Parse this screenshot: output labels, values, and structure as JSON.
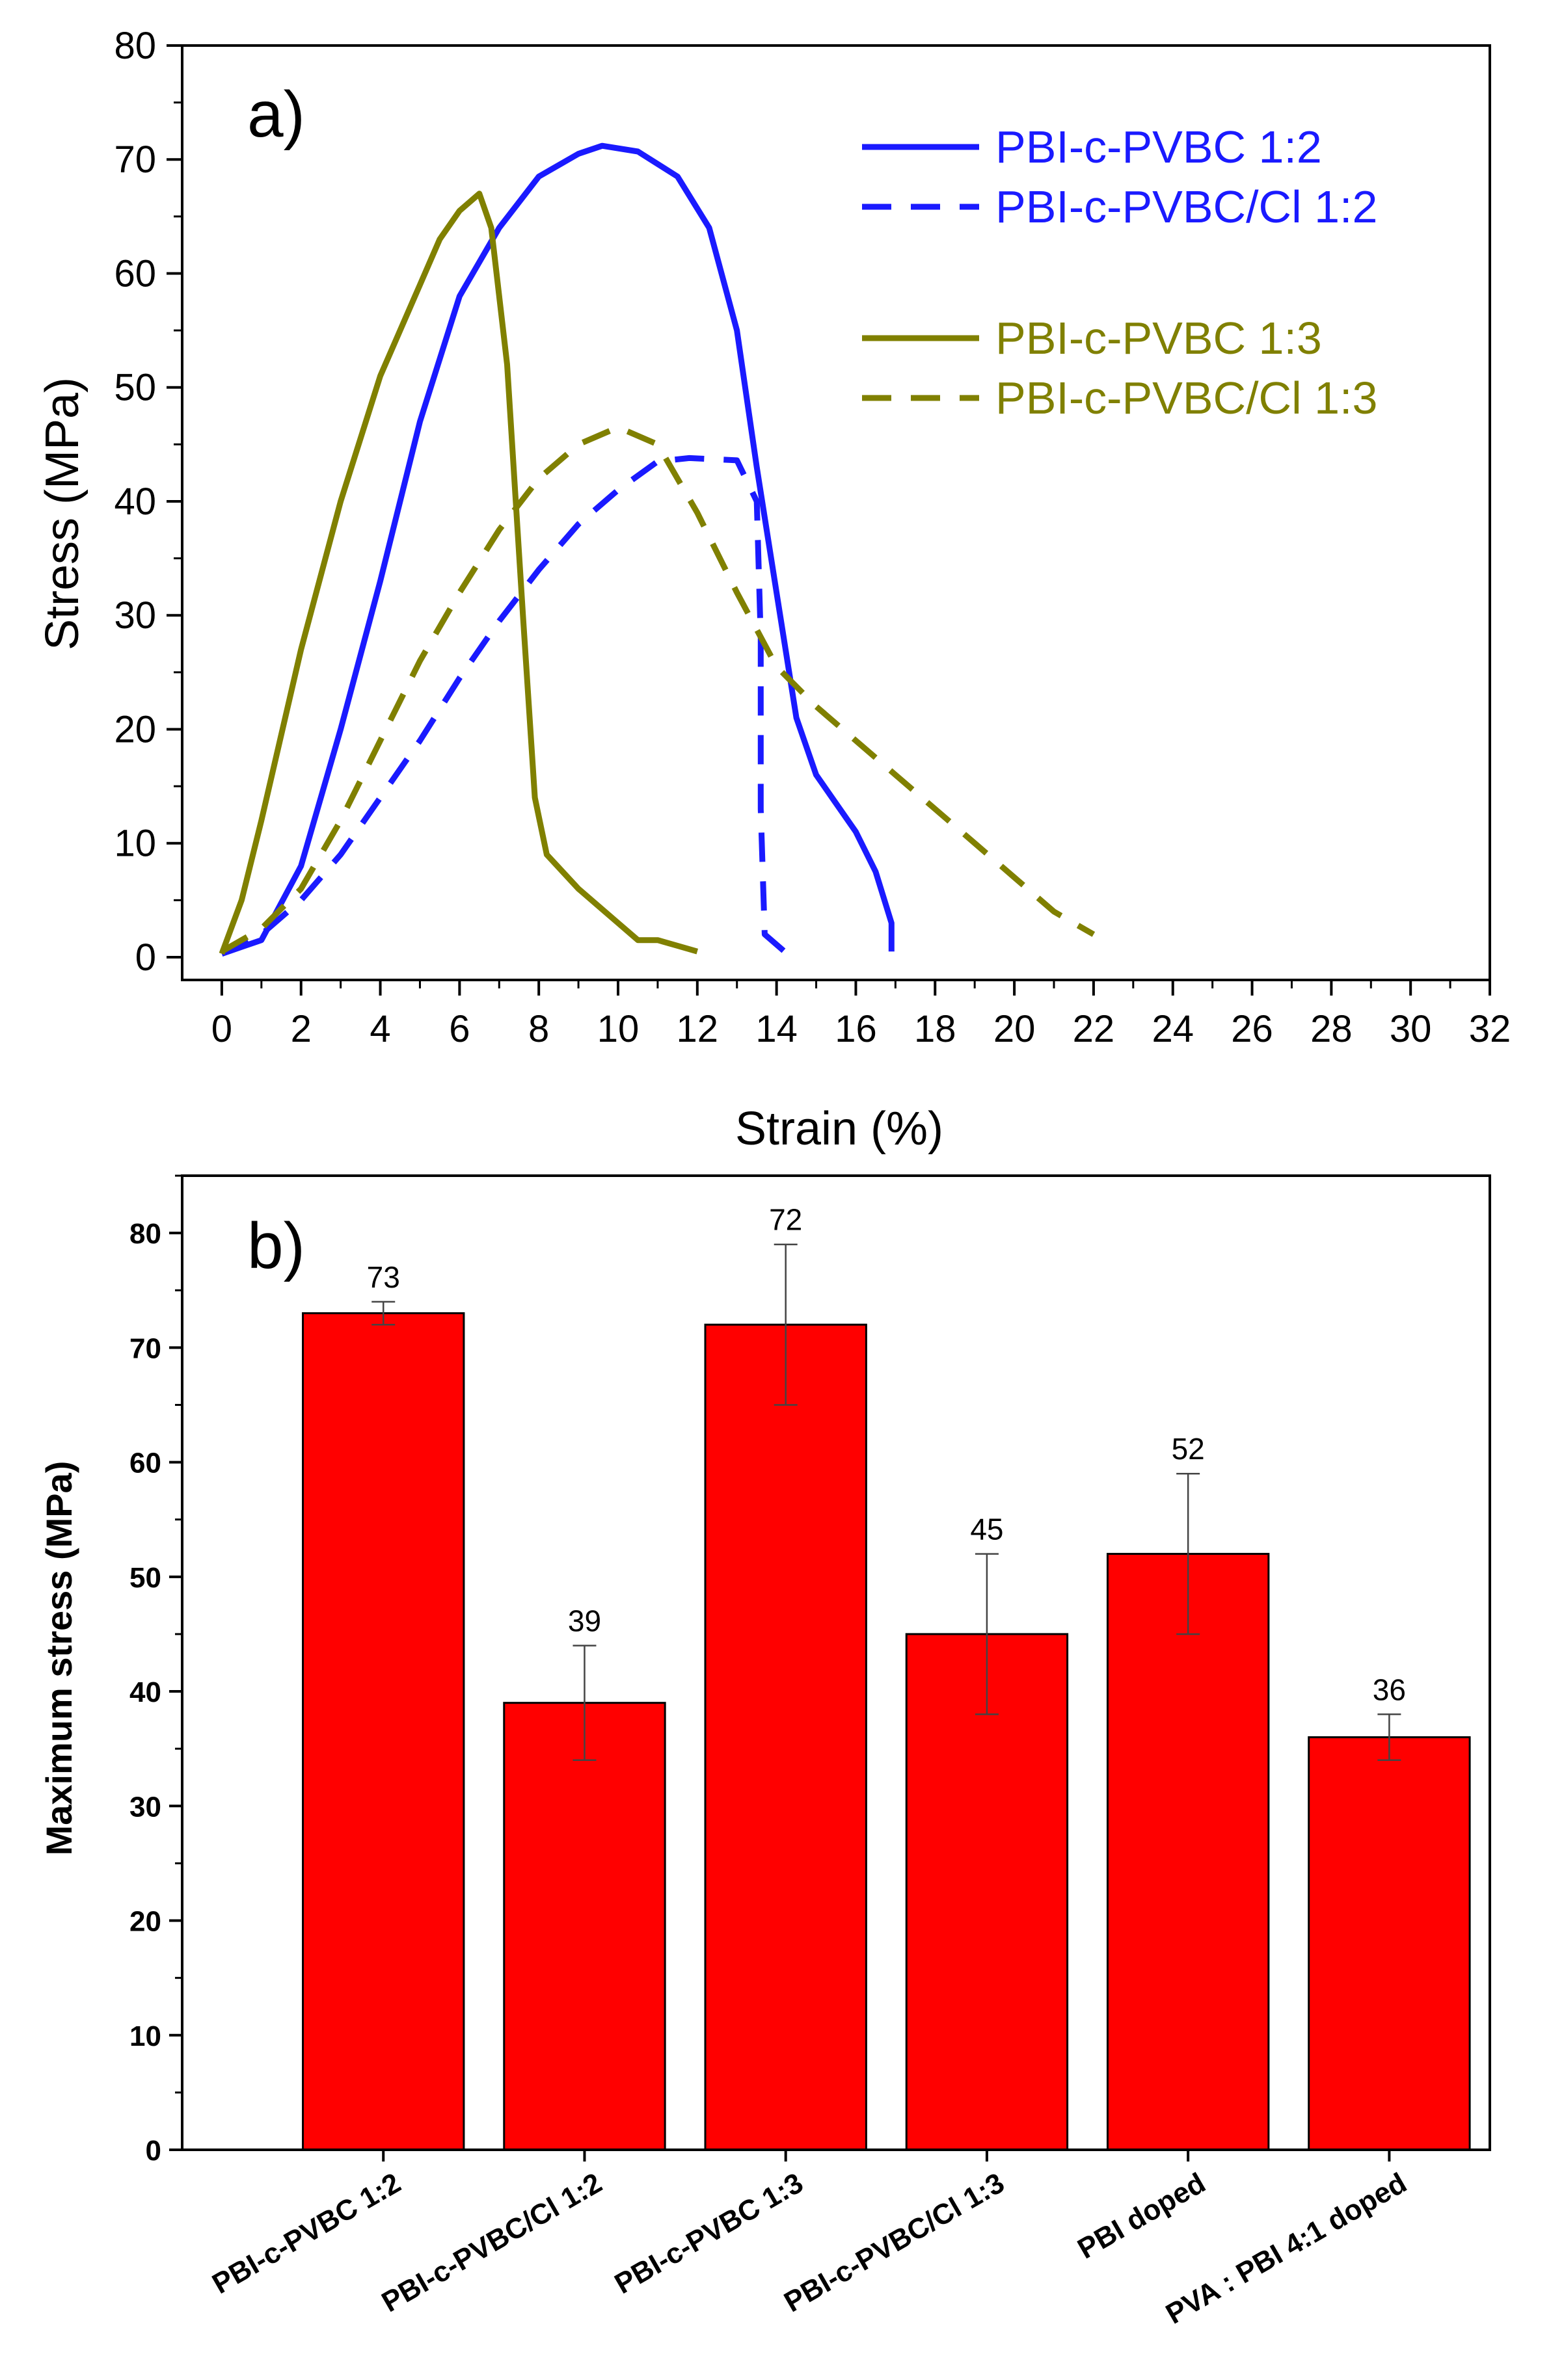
{
  "chart_data": [
    {
      "type": "line",
      "panel_label": "a)",
      "xlabel": "Strain (%)",
      "ylabel": "Stress (MPa)",
      "xlim": [
        -1,
        32
      ],
      "ylim": [
        -2,
        80
      ],
      "xticks": [
        0,
        2,
        4,
        6,
        8,
        10,
        12,
        14,
        16,
        18,
        20,
        22,
        24,
        26,
        28,
        30,
        32
      ],
      "yticks": [
        0,
        10,
        20,
        30,
        40,
        50,
        60,
        70,
        80
      ],
      "grid": false,
      "legend_position": "top-right",
      "series": [
        {
          "name": "PBI-c-PVBC 1:2",
          "color": "#1a1aff",
          "dash": "solid",
          "points": [
            [
              0,
              0.3
            ],
            [
              1,
              1.5
            ],
            [
              2,
              8
            ],
            [
              3,
              20
            ],
            [
              4,
              33
            ],
            [
              5,
              47
            ],
            [
              6,
              58
            ],
            [
              7,
              64
            ],
            [
              8,
              68.5
            ],
            [
              9,
              70.5
            ],
            [
              9.6,
              71.2
            ],
            [
              10.5,
              70.7
            ],
            [
              11.5,
              68.5
            ],
            [
              12.3,
              64
            ],
            [
              13,
              55
            ],
            [
              13.5,
              43
            ],
            [
              14,
              32
            ],
            [
              14.5,
              21
            ],
            [
              15,
              16
            ],
            [
              16,
              11
            ],
            [
              16.5,
              7.5
            ],
            [
              16.9,
              3
            ],
            [
              16.9,
              0.5
            ]
          ]
        },
        {
          "name": "PBI-c-PVBC/Cl 1:2",
          "color": "#1a1aff",
          "dash": "dashed",
          "points": [
            [
              0,
              0.3
            ],
            [
              1,
              2
            ],
            [
              2,
              5
            ],
            [
              3,
              9
            ],
            [
              4,
              14
            ],
            [
              5,
              19
            ],
            [
              6,
              24.5
            ],
            [
              7,
              29.5
            ],
            [
              8,
              34
            ],
            [
              9,
              38
            ],
            [
              10,
              41
            ],
            [
              11,
              43.5
            ],
            [
              11.8,
              43.8
            ],
            [
              13,
              43.6
            ],
            [
              13.5,
              40
            ],
            [
              13.6,
              28
            ],
            [
              13.6,
              13
            ],
            [
              13.7,
              2
            ],
            [
              14.2,
              0.5
            ]
          ]
        },
        {
          "name": "PBI-c-PVBC 1:3",
          "color": "#808000",
          "dash": "solid",
          "points": [
            [
              0,
              0.3
            ],
            [
              0.5,
              5
            ],
            [
              1,
              12
            ],
            [
              2,
              27
            ],
            [
              3,
              40
            ],
            [
              4,
              51
            ],
            [
              5,
              59
            ],
            [
              5.5,
              63
            ],
            [
              6,
              65.5
            ],
            [
              6.5,
              67
            ],
            [
              6.8,
              64
            ],
            [
              7.2,
              52
            ],
            [
              7.6,
              30
            ],
            [
              7.9,
              14
            ],
            [
              8.2,
              9
            ],
            [
              9,
              6
            ],
            [
              10,
              3
            ],
            [
              10.5,
              1.5
            ],
            [
              11,
              1.5
            ],
            [
              11.5,
              1
            ],
            [
              12,
              0.5
            ]
          ]
        },
        {
          "name": "PBI-c-PVBC/Cl 1:3",
          "color": "#808000",
          "dash": "dashed",
          "points": [
            [
              0,
              0.5
            ],
            [
              1,
              2.5
            ],
            [
              2,
              6
            ],
            [
              3,
              12
            ],
            [
              4,
              19
            ],
            [
              5,
              26
            ],
            [
              6,
              32
            ],
            [
              7,
              37.5
            ],
            [
              8,
              42
            ],
            [
              9,
              45
            ],
            [
              10,
              46.5
            ],
            [
              11,
              45
            ],
            [
              12,
              39
            ],
            [
              13,
              32
            ],
            [
              14,
              25.5
            ],
            [
              15,
              22
            ],
            [
              16,
              19
            ],
            [
              17,
              16
            ],
            [
              18,
              13
            ],
            [
              19,
              10
            ],
            [
              20,
              7
            ],
            [
              21,
              4
            ],
            [
              22,
              2
            ]
          ]
        }
      ]
    },
    {
      "type": "bar",
      "panel_label": "b)",
      "xlabel": "",
      "ylabel": "Maximum stress (MPa)",
      "ylim": [
        0,
        85
      ],
      "yticks": [
        0,
        10,
        20,
        30,
        40,
        50,
        60,
        70,
        80
      ],
      "grid": false,
      "bar_color": "#ff0000",
      "categories": [
        "PBI-c-PVBC 1:2",
        "PBI-c-PVBC/Cl 1:2",
        "PBI-c-PVBC 1:3",
        "PBI-c-PVBC/Cl 1:3",
        "PBI doped",
        "PVA : PBI  4:1 doped"
      ],
      "values": [
        73,
        39,
        72,
        45,
        52,
        36
      ],
      "errors": [
        1,
        5,
        7,
        7,
        7,
        2
      ],
      "data_labels": [
        "73",
        "39",
        "72",
        "45",
        "52",
        "36"
      ]
    }
  ]
}
